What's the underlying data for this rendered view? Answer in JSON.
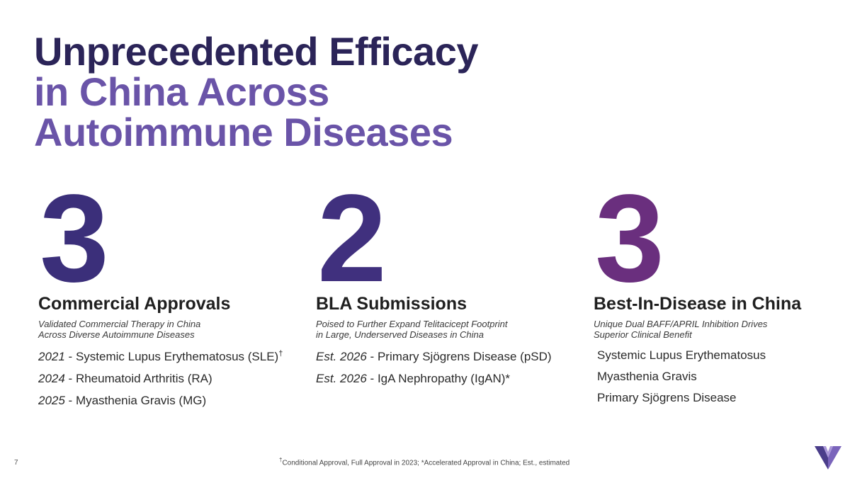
{
  "title": {
    "line1": "Unprecedented Efficacy",
    "line2": "in China Across",
    "line3": "Autoimmune Diseases"
  },
  "columns": [
    {
      "number": "3",
      "heading": "Commercial Approvals",
      "sub1": "Validated Commercial Therapy in China",
      "sub2": "Across Diverse Autoimmune Diseases",
      "items": [
        {
          "year": "2021",
          "sep": " - ",
          "text": "Systemic Lupus Erythematosus (SLE)",
          "mark": "†"
        },
        {
          "year": "2024",
          "sep": " - ",
          "text": "Rheumatoid Arthritis (RA)",
          "mark": ""
        },
        {
          "year": "2025",
          "sep": " - ",
          "text": "Myasthenia Gravis (MG)",
          "mark": ""
        }
      ]
    },
    {
      "number": "2",
      "heading": "BLA Submissions",
      "sub1": "Poised to Further Expand Telitacicept Footprint",
      "sub2": "in Large, Underserved Diseases in China",
      "items": [
        {
          "year": "Est. 2026",
          "sep": " - ",
          "text": "Primary Sjögrens Disease (pSD)"
        },
        {
          "year": "Est. 2026",
          "sep": " - ",
          "text": "IgA Nephropathy (IgAN)*"
        }
      ]
    },
    {
      "number": "3",
      "heading": "Best-In-Disease in China",
      "sub1": "Unique Dual BAFF/APRIL Inhibition Drives",
      "sub2": "Superior Clinical Benefit",
      "items": [
        "Systemic Lupus Erythematosus",
        "Myasthenia Gravis",
        "Primary Sjögrens Disease"
      ]
    }
  ],
  "footer": {
    "page": "7",
    "footnote_mark": "†",
    "footnote": "Conditional Approval, Full Approval in 2023; *Accelerated Approval in China; Est., estimated"
  },
  "colors": {
    "title_dark": "#2b2458",
    "title_accent": "#6a54a8",
    "logo": "#5a4a9e"
  },
  "icons": {
    "logo": "v-logo-icon"
  }
}
